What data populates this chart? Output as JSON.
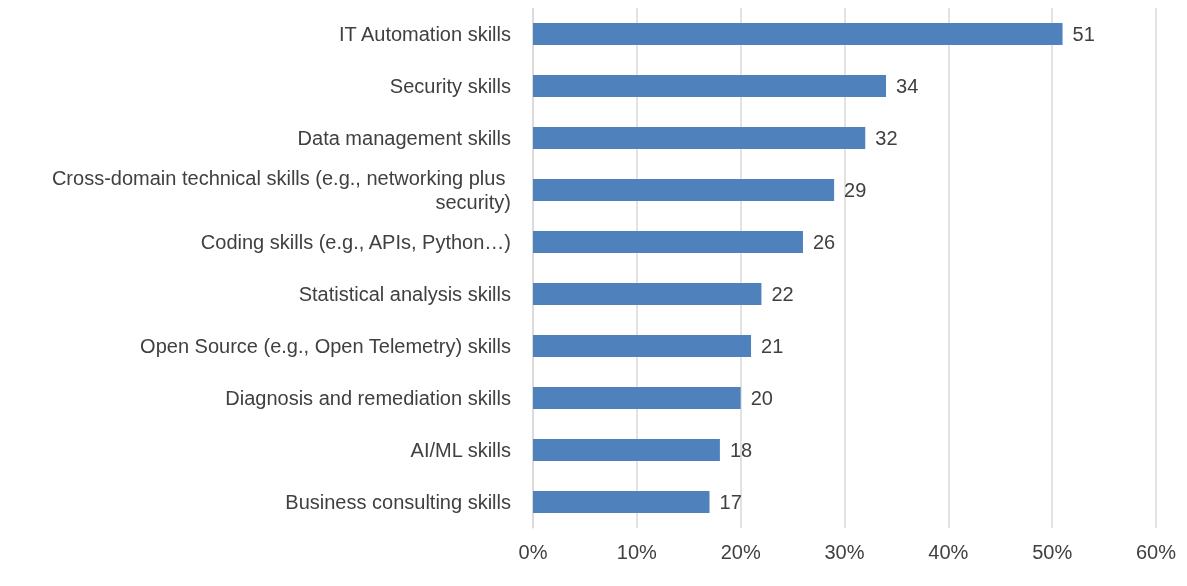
{
  "chart_data": {
    "type": "bar",
    "orientation": "horizontal",
    "categories": [
      "IT Automation skills",
      "Security skills",
      "Data management skills",
      "Cross-domain technical skills (e.g., networking plus security)",
      "Coding skills (e.g., APIs, Python…)",
      "Statistical analysis skills",
      "Open Source (e.g., Open Telemetry) skills",
      "Diagnosis and remediation skills",
      "AI/ML skills",
      "Business consulting skills"
    ],
    "values": [
      51,
      34,
      32,
      29,
      26,
      22,
      21,
      20,
      18,
      17
    ],
    "color": "#4f81bd",
    "data_labels": true,
    "grid": "x",
    "xlim": [
      0,
      60
    ],
    "xticks": [
      {
        "value": 0,
        "label": "0%"
      },
      {
        "value": 10,
        "label": "10%"
      },
      {
        "value": 20,
        "label": "20%"
      },
      {
        "value": 30,
        "label": "30%"
      },
      {
        "value": 40,
        "label": "40%"
      },
      {
        "value": 50,
        "label": "50%"
      },
      {
        "value": 60,
        "label": "60%"
      }
    ]
  }
}
